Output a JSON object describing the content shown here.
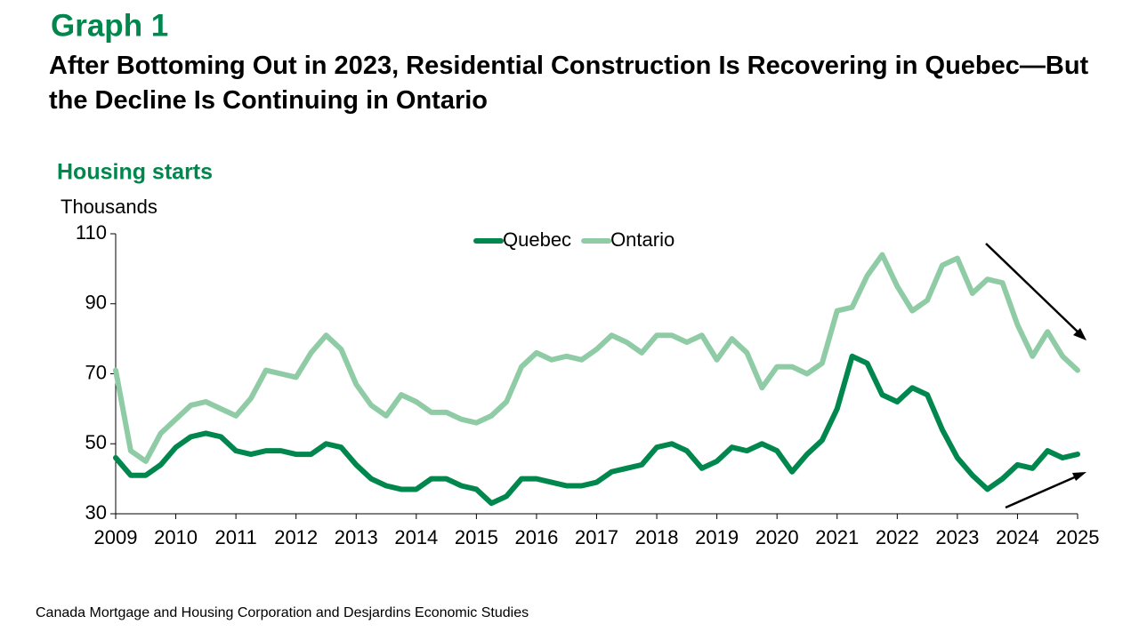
{
  "chart_data": {
    "type": "line",
    "label": "Graph 1",
    "title": "After Bottoming Out in 2023, Residential Construction Is Recovering in Quebec—But the Decline Is Continuing in Ontario",
    "subtitle": "Housing starts",
    "y_label": "Thousands",
    "source": "Canada Mortgage and Housing Corporation and Desjardins Economic Studies",
    "x": [
      2009,
      2009.25,
      2009.5,
      2009.75,
      2010,
      2010.25,
      2010.5,
      2010.75,
      2011,
      2011.25,
      2011.5,
      2011.75,
      2012,
      2012.25,
      2012.5,
      2012.75,
      2013,
      2013.25,
      2013.5,
      2013.75,
      2014,
      2014.25,
      2014.5,
      2014.75,
      2015,
      2015.25,
      2015.5,
      2015.75,
      2016,
      2016.25,
      2016.5,
      2016.75,
      2017,
      2017.25,
      2017.5,
      2017.75,
      2018,
      2018.25,
      2018.5,
      2018.75,
      2019,
      2019.25,
      2019.5,
      2019.75,
      2020,
      2020.25,
      2020.5,
      2020.75,
      2021,
      2021.25,
      2021.5,
      2021.75,
      2022,
      2022.25,
      2022.5,
      2022.75,
      2023,
      2023.25,
      2023.5,
      2023.75,
      2024,
      2024.25,
      2024.5,
      2024.75,
      2025
    ],
    "series": [
      {
        "name": "Quebec",
        "color": "#00874e",
        "values": [
          46,
          41,
          41,
          44,
          49,
          52,
          53,
          52,
          48,
          47,
          48,
          48,
          47,
          47,
          50,
          49,
          44,
          40,
          38,
          37,
          37,
          40,
          40,
          38,
          37,
          33,
          35,
          40,
          40,
          39,
          38,
          38,
          39,
          42,
          43,
          44,
          49,
          50,
          48,
          43,
          45,
          49,
          48,
          50,
          48,
          42,
          47,
          51,
          60,
          75,
          73,
          64,
          62,
          66,
          64,
          54,
          46,
          41,
          37,
          40,
          44,
          43,
          48,
          46,
          47
        ]
      },
      {
        "name": "Ontario",
        "color": "#8fcca6",
        "values": [
          71,
          48,
          45,
          53,
          57,
          61,
          62,
          60,
          58,
          63,
          71,
          70,
          69,
          76,
          81,
          77,
          67,
          61,
          58,
          64,
          62,
          59,
          59,
          57,
          56,
          58,
          62,
          72,
          76,
          74,
          75,
          74,
          77,
          81,
          79,
          76,
          81,
          81,
          79,
          81,
          74,
          80,
          76,
          66,
          72,
          72,
          70,
          73,
          88,
          89,
          98,
          104,
          95,
          88,
          91,
          101,
          103,
          93,
          97,
          96,
          84,
          75,
          82,
          75,
          71
        ]
      }
    ],
    "xlim": [
      2009,
      2025
    ],
    "xticks": [
      2009,
      2010,
      2011,
      2012,
      2013,
      2014,
      2015,
      2016,
      2017,
      2018,
      2019,
      2020,
      2021,
      2022,
      2023,
      2024,
      2025
    ],
    "ylim": [
      30,
      110
    ],
    "yticks": [
      30,
      50,
      70,
      90,
      110
    ],
    "grid": false,
    "legend": "top"
  }
}
